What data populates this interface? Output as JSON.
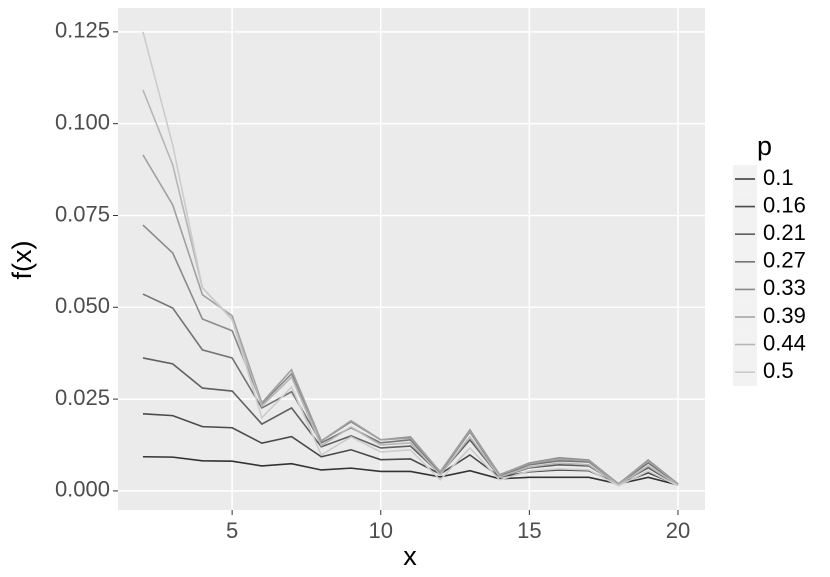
{
  "chart_data": {
    "type": "line",
    "x_label": "x",
    "y_label": "f(x)",
    "legend_title": "p",
    "legend": "right",
    "grid": true,
    "x": [
      2,
      3,
      4,
      5,
      6,
      7,
      8,
      9,
      10,
      11,
      12,
      13,
      14,
      15,
      16,
      17,
      18,
      19,
      20
    ],
    "xlim": [
      1.16,
      20.91
    ],
    "xticks": [
      5,
      10,
      15,
      20
    ],
    "ylim": [
      -0.0052,
      0.1315
    ],
    "yticks": [
      {
        "value": 0,
        "label": "0.000"
      },
      0.025,
      {
        "value": 0.05,
        "label": "0.050"
      },
      0.075,
      {
        "value": 0.1,
        "label": "0.100"
      },
      0.125
    ],
    "series": [
      {
        "name": "0.1",
        "color": "#333333",
        "values": [
          0.0093,
          0.0092,
          0.0082,
          0.0081,
          0.0068,
          0.0074,
          0.0057,
          0.0062,
          0.0053,
          0.0053,
          0.0038,
          0.0055,
          0.0033,
          0.0037,
          0.0037,
          0.0037,
          0.0019,
          0.0037,
          0.0016
        ]
      },
      {
        "name": "0.16",
        "color": "#494949",
        "values": [
          0.021,
          0.0205,
          0.0175,
          0.0172,
          0.013,
          0.0148,
          0.0093,
          0.0112,
          0.0085,
          0.0087,
          0.0046,
          0.0098,
          0.0038,
          0.0052,
          0.0057,
          0.0055,
          0.0019,
          0.0049,
          0.0016
        ]
      },
      {
        "name": "0.21",
        "color": "#5f5f5f",
        "values": [
          0.0362,
          0.0346,
          0.028,
          0.0272,
          0.0182,
          0.0226,
          0.012,
          0.015,
          0.0117,
          0.0122,
          0.0046,
          0.0139,
          0.0038,
          0.0063,
          0.0071,
          0.0068,
          0.0019,
          0.0063,
          0.0016
        ]
      },
      {
        "name": "0.27",
        "color": "#757575",
        "values": [
          0.0536,
          0.0498,
          0.0384,
          0.0362,
          0.0226,
          0.027,
          0.0131,
          0.0172,
          0.0131,
          0.0139,
          0.0049,
          0.0161,
          0.0041,
          0.0071,
          0.0082,
          0.0079,
          0.0019,
          0.0076,
          0.0019
        ]
      },
      {
        "name": "0.33",
        "color": "#8a8a8a",
        "values": [
          0.0724,
          0.0648,
          0.0468,
          0.0436,
          0.0237,
          0.0319,
          0.0136,
          0.0188,
          0.0139,
          0.0147,
          0.0052,
          0.0166,
          0.0044,
          0.0076,
          0.009,
          0.0084,
          0.0019,
          0.0084,
          0.0019
        ]
      },
      {
        "name": "0.39",
        "color": "#a0a0a0",
        "values": [
          0.0915,
          0.0779,
          0.0534,
          0.0477,
          0.024,
          0.033,
          0.0136,
          0.0191,
          0.0139,
          0.0144,
          0.0052,
          0.0163,
          0.0044,
          0.0074,
          0.0087,
          0.0082,
          0.0019,
          0.0082,
          0.0019
        ]
      },
      {
        "name": "0.44",
        "color": "#b6b6b6",
        "values": [
          0.1092,
          0.0888,
          0.0553,
          0.0468,
          0.0231,
          0.031,
          0.0123,
          0.0174,
          0.0125,
          0.0131,
          0.0044,
          0.0147,
          0.0038,
          0.0065,
          0.0076,
          0.0071,
          0.0016,
          0.0068,
          0.0016
        ]
      },
      {
        "name": "0.5",
        "color": "#cccccc",
        "values": [
          0.125,
          0.0942,
          0.0553,
          0.0466,
          0.0199,
          0.0283,
          0.0098,
          0.0147,
          0.0106,
          0.0112,
          0.003,
          0.0117,
          0.003,
          0.0054,
          0.006,
          0.0057,
          0.0014,
          0.0054,
          0.0014
        ]
      }
    ]
  }
}
